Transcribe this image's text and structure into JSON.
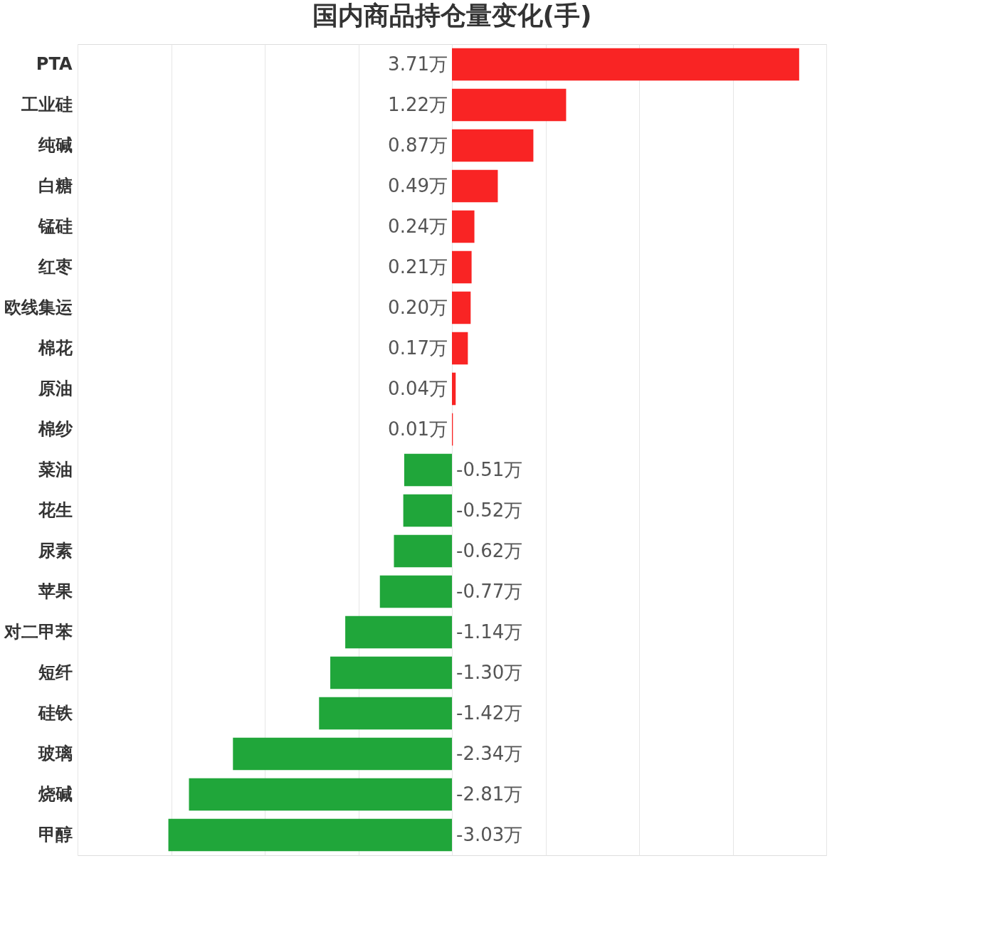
{
  "chart_data": {
    "type": "bar",
    "orientation": "horizontal",
    "title": "国内商品持仓量变化(手)",
    "categories": [
      "PTA",
      "工业硅",
      "纯碱",
      "白糖",
      "锰硅",
      "红枣",
      "欧线集运",
      "棉花",
      "原油",
      "棉纱",
      "菜油",
      "花生",
      "尿素",
      "苹果",
      "对二甲苯",
      "短纤",
      "硅铁",
      "玻璃",
      "烧碱",
      "甲醇"
    ],
    "values": [
      3.71,
      1.22,
      0.87,
      0.49,
      0.24,
      0.21,
      0.2,
      0.17,
      0.04,
      0.01,
      -0.51,
      -0.52,
      -0.62,
      -0.77,
      -1.14,
      -1.3,
      -1.42,
      -2.34,
      -2.81,
      -3.03
    ],
    "value_labels": [
      "3.71万",
      "1.22万",
      "0.87万",
      "0.49万",
      "0.24万",
      "0.21万",
      "0.20万",
      "0.17万",
      "0.04万",
      "0.01万",
      "-0.51万",
      "-0.52万",
      "-0.62万",
      "-0.77万",
      "-1.14万",
      "-1.30万",
      "-1.42万",
      "-2.34万",
      "-2.81万",
      "-3.03万"
    ],
    "colors": [
      "#f92424",
      "#f92424",
      "#f92424",
      "#f92424",
      "#f92424",
      "#f92424",
      "#f92424",
      "#f92424",
      "#f92424",
      "#f92424",
      "#20a63a",
      "#20a63a",
      "#20a63a",
      "#20a63a",
      "#20a63a",
      "#20a63a",
      "#20a63a",
      "#20a63a",
      "#20a63a",
      "#20a63a"
    ],
    "xlim": [
      -4,
      4
    ],
    "xticks": [
      {
        "value": -4,
        "label": null
      },
      {
        "value": -3,
        "label": null
      },
      {
        "value": -2,
        "label": null
      },
      {
        "value": -1,
        "label": null
      },
      {
        "value": 0,
        "label": null
      },
      {
        "value": 1,
        "label": null
      },
      {
        "value": 2,
        "label": null
      },
      {
        "value": 3,
        "label": null
      },
      {
        "value": 4,
        "label": null
      }
    ],
    "grid": "x",
    "tick_labels": "y"
  }
}
